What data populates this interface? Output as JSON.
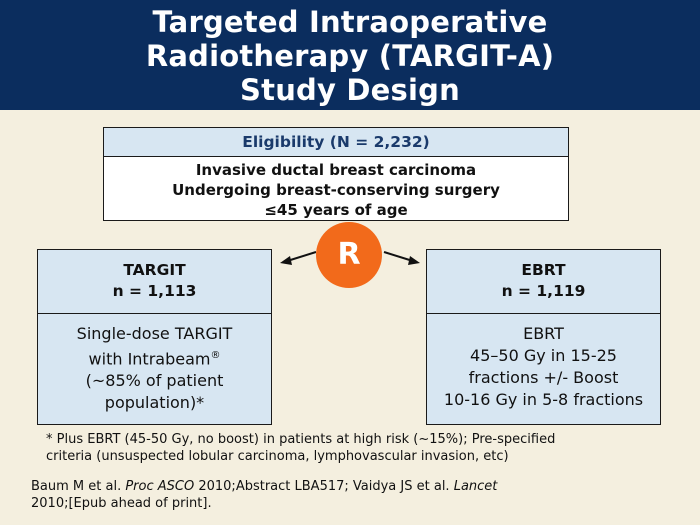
{
  "header": {
    "title_lines": [
      "Targeted Intraoperative",
      "Radiotherapy (TARGIT-A)",
      "Study Design"
    ]
  },
  "eligibility": {
    "title": "Eligibility (N = 2,232)",
    "criteria": [
      "Invasive ductal breast carcinoma",
      "Undergoing breast-conserving surgery",
      "≤45 years of age"
    ]
  },
  "randomization": {
    "label": "R"
  },
  "arms": {
    "targit": {
      "name": "TARGIT",
      "n": "n = 1,113",
      "lines": [
        "Single-dose TARGIT",
        "with Intrabeam",
        "(~85% of patient",
        "population)*"
      ],
      "registered_mark": "®"
    },
    "ebrt": {
      "name": "EBRT",
      "n": "n = 1,119",
      "lines": [
        "EBRT",
        "45–50 Gy in 15-25",
        "fractions +/- Boost",
        "10-16 Gy in 5-8 fractions"
      ]
    }
  },
  "footnote": {
    "line1": "* Plus EBRT (45-50 Gy, no boost) in patients at high risk (~15%); Pre-specified",
    "line2": "criteria (unsuspected lobular carcinoma, lymphovascular invasion, etc)"
  },
  "citation": {
    "part1": "Baum M et al. ",
    "journal1": "Proc ASCO",
    "part2": " 2010;Abstract LBA517; Vaidya JS et al. ",
    "journal2": "Lancet",
    "part3": "2010;[Epub ahead of print]."
  },
  "colors": {
    "header_bg": "#0b2d5e",
    "box_fill": "#d7e6f2",
    "accent_orange": "#f26a1b",
    "page_bg": "#f4efdf"
  }
}
